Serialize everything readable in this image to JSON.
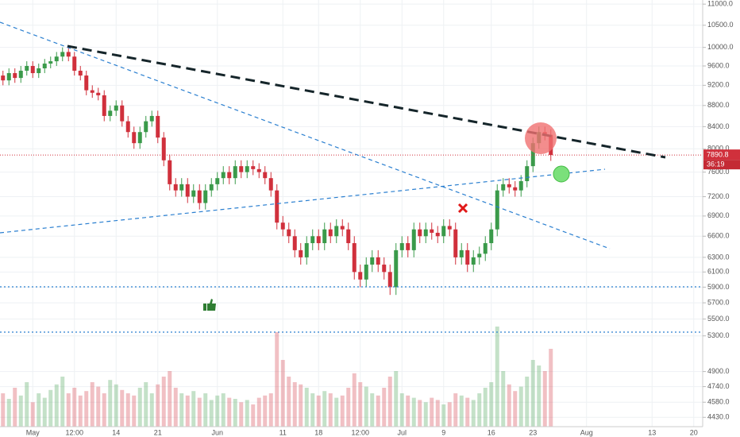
{
  "chart_data": {
    "type": "candlestick",
    "categories": [
      null,
      null,
      null,
      null,
      null,
      "May",
      null,
      null,
      null,
      null,
      null,
      null,
      "12:00",
      null,
      null,
      null,
      null,
      null,
      null,
      "14",
      null,
      null,
      null,
      null,
      null,
      null,
      "21",
      null,
      null,
      null,
      null,
      null,
      null,
      null,
      null,
      null,
      "Jun",
      null,
      null,
      null,
      null,
      null,
      null,
      null,
      null,
      null,
      null,
      "11",
      null,
      null,
      null,
      null,
      null,
      "18",
      null,
      null,
      null,
      null,
      null,
      null,
      "12:00",
      null,
      null,
      null,
      null,
      null,
      null,
      "Jul",
      null,
      null,
      null,
      null,
      null,
      null,
      "9",
      null,
      null,
      null,
      null,
      null,
      null,
      null,
      "16",
      null,
      null,
      null,
      null,
      null,
      null,
      "23",
      null,
      null,
      null,
      null,
      null,
      null,
      null,
      null,
      "Aug",
      null,
      null,
      null,
      null,
      null,
      null,
      null,
      null,
      null,
      null,
      "13",
      null,
      null,
      null,
      null,
      null,
      null,
      "20",
      null
    ],
    "open": [
      9400,
      9300,
      9450,
      9350,
      9500,
      9600,
      9450,
      9550,
      9650,
      9700,
      9800,
      9900,
      9800,
      9500,
      9400,
      9100,
      9050,
      9000,
      8600,
      8700,
      8800,
      8500,
      8300,
      8100,
      8300,
      8500,
      8600,
      8200,
      7800,
      7400,
      7300,
      7400,
      7200,
      7300,
      7100,
      7300,
      7400,
      7500,
      7600,
      7500,
      7700,
      7600,
      7700,
      7650,
      7600,
      7500,
      7300,
      6800,
      6700,
      6600,
      6400,
      6300,
      6500,
      6600,
      6500,
      6700,
      6600,
      6750,
      6700,
      6500,
      6100,
      6000,
      6200,
      6300,
      6200,
      6100,
      5900,
      6400,
      6500,
      6400,
      6700,
      6600,
      6700,
      6650,
      6600,
      6750,
      6700,
      6300,
      6400,
      6200,
      6300,
      6350,
      6500,
      6700,
      7300,
      7400,
      7350,
      7300,
      7450,
      7700,
      8100,
      8300,
      8250,
      null,
      null,
      null,
      null,
      null,
      null,
      null,
      null,
      null,
      null,
      null,
      null,
      null,
      null,
      null,
      null,
      null,
      null,
      null,
      null,
      null,
      null,
      null,
      null,
      null
    ],
    "high": [
      9500,
      9550,
      9550,
      9600,
      9700,
      9700,
      9650,
      9750,
      9800,
      9900,
      10000,
      10000,
      9900,
      9600,
      9500,
      9200,
      9150,
      9100,
      8800,
      8900,
      8900,
      8600,
      8400,
      8400,
      8600,
      8700,
      8700,
      8300,
      7900,
      7500,
      7500,
      7500,
      7400,
      7400,
      7400,
      7500,
      7600,
      7700,
      7700,
      7800,
      7800,
      7800,
      7800,
      7750,
      7700,
      7600,
      7400,
      6900,
      6800,
      6700,
      6500,
      6600,
      6700,
      6700,
      6800,
      6800,
      6850,
      6850,
      6800,
      6600,
      6200,
      6300,
      6400,
      6400,
      6300,
      6200,
      6500,
      6600,
      6600,
      6800,
      6800,
      6800,
      6800,
      6750,
      6850,
      6850,
      6800,
      6500,
      6500,
      6400,
      6450,
      6600,
      6800,
      7400,
      7500,
      7500,
      7450,
      7550,
      7800,
      8200,
      8400,
      8400,
      8350,
      null,
      null,
      null,
      null,
      null,
      null,
      null,
      null,
      null,
      null,
      null,
      null,
      null,
      null,
      null,
      null,
      null,
      null,
      null,
      null,
      null,
      null,
      null,
      null,
      null
    ],
    "low": [
      9200,
      9200,
      9250,
      9250,
      9400,
      9350,
      9350,
      9450,
      9550,
      9600,
      9700,
      9700,
      9400,
      9300,
      9000,
      8950,
      8900,
      8500,
      8500,
      8600,
      8400,
      8200,
      8000,
      8000,
      8200,
      8400,
      8100,
      7700,
      7300,
      7200,
      7200,
      7100,
      7100,
      7000,
      7000,
      7200,
      7300,
      7400,
      7400,
      7400,
      7500,
      7500,
      7550,
      7500,
      7400,
      7200,
      6700,
      6600,
      6500,
      6300,
      6200,
      6200,
      6400,
      6400,
      6400,
      6500,
      6500,
      6600,
      6400,
      6000,
      5900,
      5900,
      6100,
      6100,
      6000,
      5800,
      5800,
      6300,
      6300,
      6300,
      6500,
      6500,
      6550,
      6500,
      6500,
      6600,
      6200,
      6200,
      6100,
      6100,
      6200,
      6250,
      6400,
      6600,
      7200,
      7250,
      7200,
      7200,
      7350,
      7600,
      8000,
      8150,
      7790,
      null,
      null,
      null,
      null,
      null,
      null,
      null,
      null,
      null,
      null,
      null,
      null,
      null,
      null,
      null,
      null,
      null,
      null,
      null,
      null,
      null,
      null,
      null,
      null,
      null
    ],
    "close": [
      9300,
      9450,
      9350,
      9500,
      9600,
      9450,
      9550,
      9650,
      9700,
      9800,
      9900,
      9800,
      9500,
      9400,
      9100,
      9050,
      9000,
      8600,
      8700,
      8800,
      8500,
      8300,
      8100,
      8300,
      8500,
      8600,
      8200,
      7800,
      7400,
      7300,
      7400,
      7200,
      7300,
      7100,
      7300,
      7400,
      7500,
      7600,
      7500,
      7700,
      7600,
      7700,
      7650,
      7600,
      7500,
      7300,
      6800,
      6700,
      6600,
      6400,
      6300,
      6500,
      6600,
      6500,
      6700,
      6600,
      6750,
      6700,
      6500,
      6100,
      6000,
      6200,
      6300,
      6200,
      6100,
      5900,
      6400,
      6500,
      6400,
      6700,
      6600,
      6700,
      6650,
      6600,
      6750,
      6700,
      6300,
      6400,
      6200,
      6300,
      6350,
      6500,
      6700,
      7300,
      7400,
      7350,
      7300,
      7450,
      7700,
      8100,
      8300,
      8250,
      7890.8,
      null,
      null,
      null,
      null,
      null,
      null,
      null,
      null,
      null,
      null,
      null,
      null,
      null,
      null,
      null,
      null,
      null,
      null,
      null,
      null,
      null,
      null,
      null,
      null,
      null
    ],
    "volume": [
      30,
      25,
      35,
      28,
      40,
      22,
      30,
      26,
      33,
      38,
      45,
      30,
      35,
      28,
      32,
      40,
      36,
      30,
      42,
      38,
      33,
      30,
      28,
      35,
      40,
      30,
      38,
      45,
      50,
      35,
      30,
      28,
      32,
      26,
      30,
      24,
      28,
      30,
      26,
      25,
      22,
      24,
      20,
      26,
      28,
      30,
      85,
      60,
      45,
      40,
      38,
      35,
      30,
      28,
      32,
      30,
      26,
      28,
      35,
      48,
      40,
      36,
      30,
      28,
      35,
      45,
      50,
      30,
      28,
      26,
      24,
      22,
      26,
      24,
      20,
      22,
      30,
      28,
      26,
      24,
      30,
      35,
      40,
      90,
      50,
      38,
      32,
      36,
      45,
      60,
      55,
      50,
      70,
      null,
      null,
      null,
      null,
      null,
      null,
      null,
      null,
      null,
      null,
      null,
      null,
      null,
      null,
      null,
      null,
      null,
      null,
      null,
      null,
      null,
      null,
      null,
      null,
      null
    ],
    "up_color": "#3a9a4a",
    "down_color": "#d0303c",
    "log_scale": true,
    "ylim": [
      4340,
      11100
    ],
    "y2lim": [
      0,
      100
    ],
    "yticks": [
      {
        "value": 11000,
        "label": "11000.0"
      },
      {
        "value": 10500,
        "label": "10500.0"
      },
      {
        "value": 10000,
        "label": "10000.0"
      },
      {
        "value": 9600,
        "label": "9600.0"
      },
      {
        "value": 9200,
        "label": "9200.0"
      },
      {
        "value": 8800,
        "label": "8800.0"
      },
      {
        "value": 8400,
        "label": "8400.0"
      },
      {
        "value": 8000,
        "label": "8000.0"
      },
      {
        "value": 7600,
        "label": "7600.0"
      },
      {
        "value": 7200,
        "label": "7200.0"
      },
      {
        "value": 6900,
        "label": "6900.0"
      },
      {
        "value": 6600,
        "label": "6600.0"
      },
      {
        "value": 6300,
        "label": "6300.0"
      },
      {
        "value": 6100,
        "label": "6100.0"
      },
      {
        "value": 5900,
        "label": "5900.0"
      },
      {
        "value": 5700,
        "label": "5700.0"
      },
      {
        "value": 5500,
        "label": "5500.0"
      },
      {
        "value": 5300,
        "label": "5300.0"
      },
      {
        "value": 4900,
        "label": "4900.0"
      },
      {
        "value": 4740,
        "label": "4740.0"
      },
      {
        "value": 4580,
        "label": "4580.0"
      },
      {
        "value": 4430,
        "label": "4430.0"
      }
    ],
    "grid": true,
    "countdown": "36:19"
  }
}
